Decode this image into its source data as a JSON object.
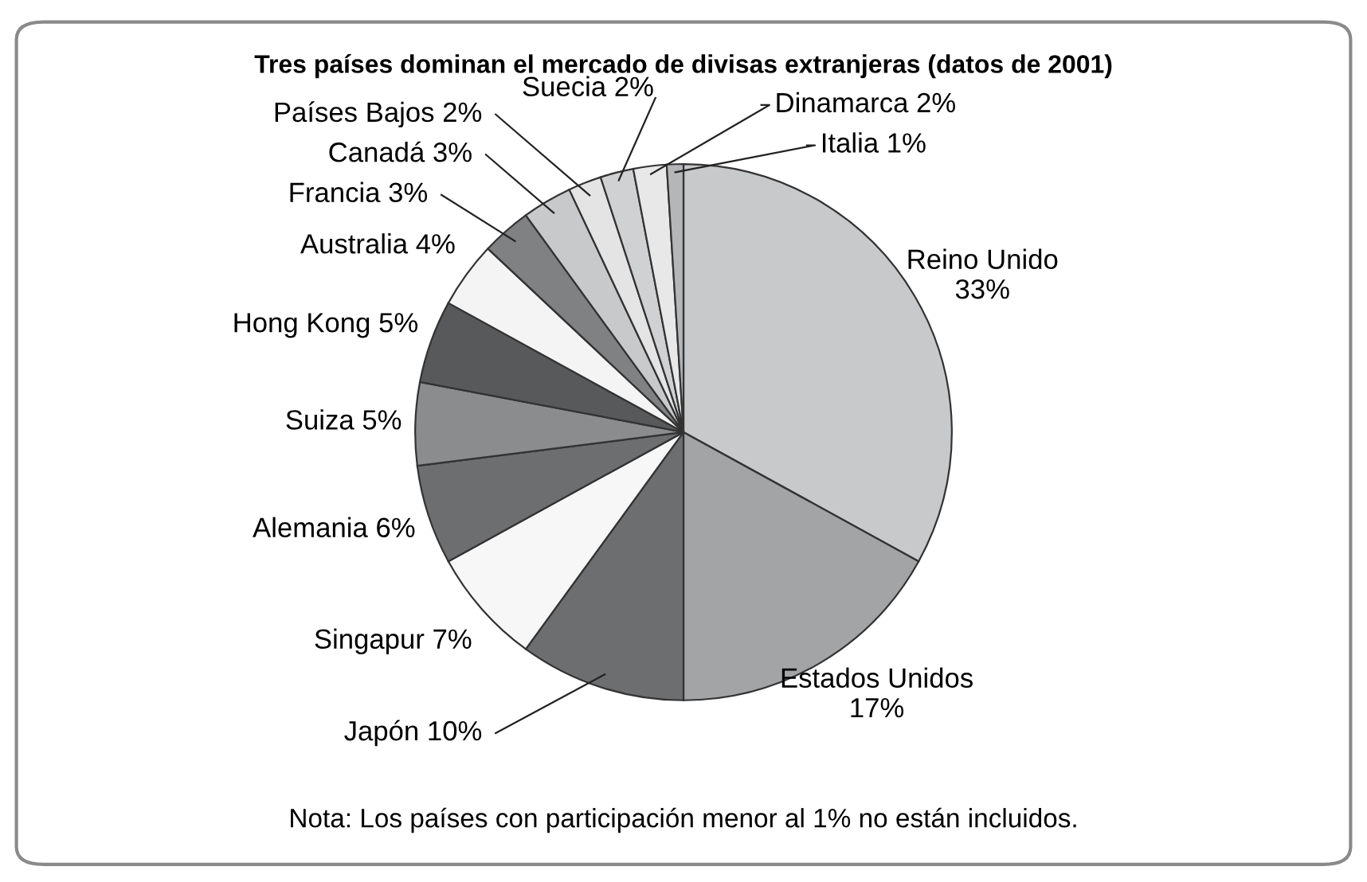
{
  "chart_data": {
    "type": "pie",
    "title": "Tres países dominan el mercado de divisas extranjeras (datos de 2001)",
    "categories": [
      "Reino Unido",
      "Estados Unidos",
      "Japón",
      "Singapur",
      "Alemania",
      "Suiza",
      "Hong Kong",
      "Australia",
      "Francia",
      "Canadá",
      "Países Bajos",
      "Suecia",
      "Dinamarca",
      "Italia"
    ],
    "values": [
      33,
      17,
      10,
      7,
      6,
      5,
      5,
      4,
      3,
      3,
      2,
      2,
      2,
      1
    ],
    "colors": [
      "#c8c9cb",
      "#a3a4a6",
      "#6d6e70",
      "#f7f7f7",
      "#6d6e70",
      "#8b8c8e",
      "#58595b",
      "#f4f4f4",
      "#808183",
      "#c8c9cb",
      "#e4e4e4",
      "#d0d1d3",
      "#e8e8e8",
      "#b5b6b8"
    ],
    "value_labels": [
      "33%",
      "17%",
      "10%",
      "7%",
      "6%",
      "5%",
      "5%",
      "4%",
      "3%",
      "3%",
      "2%",
      "2%",
      "2%",
      "1%"
    ],
    "annotations": [
      "Nota: Los países con participación menor al 1% no están incluidos."
    ]
  }
}
